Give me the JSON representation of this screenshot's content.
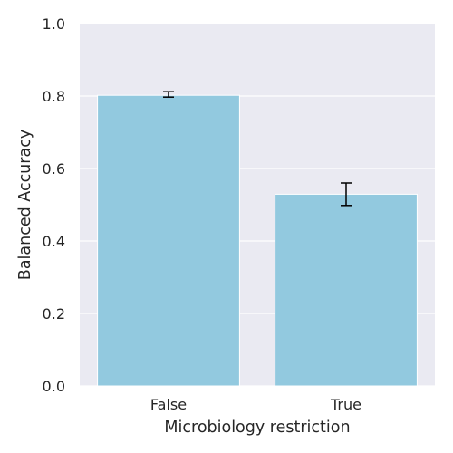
{
  "chart_data": {
    "type": "bar",
    "xlabel": "Microbiology restriction",
    "ylabel": "Balanced Accuracy",
    "categories": [
      "False",
      "True"
    ],
    "values": [
      0.802,
      0.529
    ],
    "error_low": [
      0.797,
      0.498
    ],
    "error_high": [
      0.812,
      0.56
    ],
    "ylim": [
      0,
      1
    ],
    "yticks": [
      0.0,
      0.2,
      0.4,
      0.6,
      0.8,
      1.0
    ],
    "ytick_labels": [
      "0.0",
      "0.2",
      "0.4",
      "0.6",
      "0.8",
      "1.0"
    ],
    "grid": true,
    "colors": {
      "bar": "#92c9df",
      "plot_background": "#eaeaf2",
      "grid": "#ffffff",
      "error_bar": "#000000"
    }
  }
}
